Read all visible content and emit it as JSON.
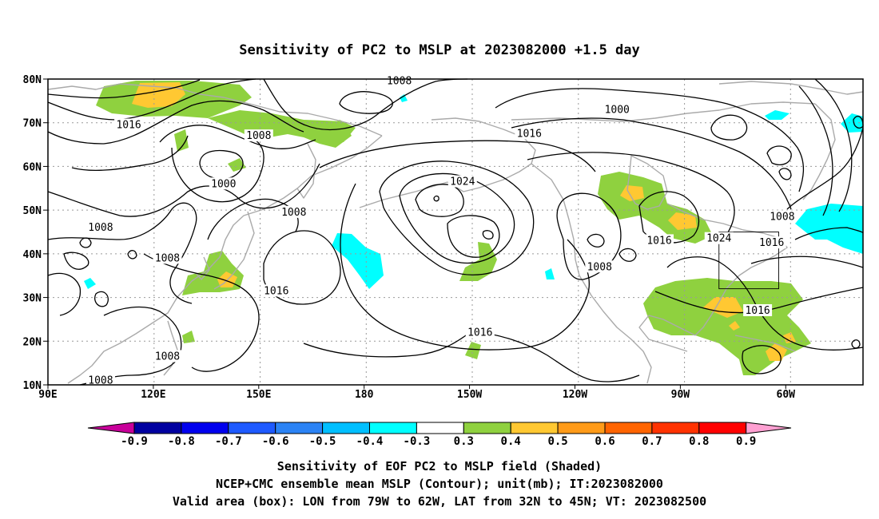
{
  "title": "Sensitivity of PC2 to MSLP at 2023082000 +1.5 day",
  "map": {
    "lat_ticks": [
      "10N",
      "20N",
      "30N",
      "40N",
      "50N",
      "60N",
      "70N",
      "80N"
    ],
    "lon_ticks": [
      "90E",
      "120E",
      "150E",
      "180",
      "150W",
      "120W",
      "90W",
      "60W"
    ],
    "lon_range_deg_east": [
      90,
      322
    ],
    "lat_range_deg": [
      10,
      80
    ],
    "grid": "dotted",
    "contour_labels": [
      {
        "text": "1008",
        "lon": 190,
        "lat": 79.5
      },
      {
        "text": "1000",
        "lon": 252,
        "lat": 73
      },
      {
        "text": "1016",
        "lon": 113,
        "lat": 69.5
      },
      {
        "text": "1008",
        "lon": 150,
        "lat": 67
      },
      {
        "text": "1016",
        "lon": 227,
        "lat": 67.5
      },
      {
        "text": "1000",
        "lon": 140,
        "lat": 56
      },
      {
        "text": "1024",
        "lon": 208,
        "lat": 56.5
      },
      {
        "text": "1008",
        "lon": 160,
        "lat": 49.5
      },
      {
        "text": "1008",
        "lon": 105,
        "lat": 46
      },
      {
        "text": "1008",
        "lon": 299,
        "lat": 48.5
      },
      {
        "text": "1024",
        "lon": 281,
        "lat": 43.5
      },
      {
        "text": "1016",
        "lon": 296,
        "lat": 42.5
      },
      {
        "text": "1016",
        "lon": 264,
        "lat": 43
      },
      {
        "text": "1008",
        "lon": 124,
        "lat": 39
      },
      {
        "text": "1008",
        "lon": 247,
        "lat": 37
      },
      {
        "text": "1016",
        "lon": 155,
        "lat": 31.5
      },
      {
        "text": "1016",
        "lon": 292,
        "lat": 27
      },
      {
        "text": "1016",
        "lon": 213,
        "lat": 22
      },
      {
        "text": "1008",
        "lon": 124,
        "lat": 16.5
      },
      {
        "text": "1008",
        "lon": 105,
        "lat": 11
      }
    ],
    "valid_box": {
      "lon_west": 281,
      "lon_east": 298,
      "lat_south": 32,
      "lat_north": 45
    },
    "colors": {
      "contour": "#000000",
      "coast": "#aaaaaa",
      "grid": "#999999"
    }
  },
  "colorbar": {
    "labels": [
      "-0.9",
      "-0.8",
      "-0.7",
      "-0.6",
      "-0.5",
      "-0.4",
      "-0.3",
      "0.3",
      "0.4",
      "0.5",
      "0.6",
      "0.7",
      "0.8",
      "0.9"
    ],
    "colors": [
      "#0000a0",
      "#0000ee",
      "#1e5aff",
      "#2b83f5",
      "#00bfff",
      "#00ffff",
      "#ffffff",
      "#8fd13f",
      "#ffc832",
      "#ff9b19",
      "#ff6400",
      "#ff3200",
      "#ff0000"
    ],
    "left_extend_color": "#c8009a",
    "right_extend_color": "#ffa0d2"
  },
  "captions": [
    "Sensitivity of EOF PC2 to MSLP field (Shaded)",
    "NCEP+CMC ensemble mean MSLP (Contour); unit(mb); IT:2023082000",
    "Valid area (box): LON from 79W to 62W, LAT from 32N to 45N; VT: 2023082500"
  ]
}
